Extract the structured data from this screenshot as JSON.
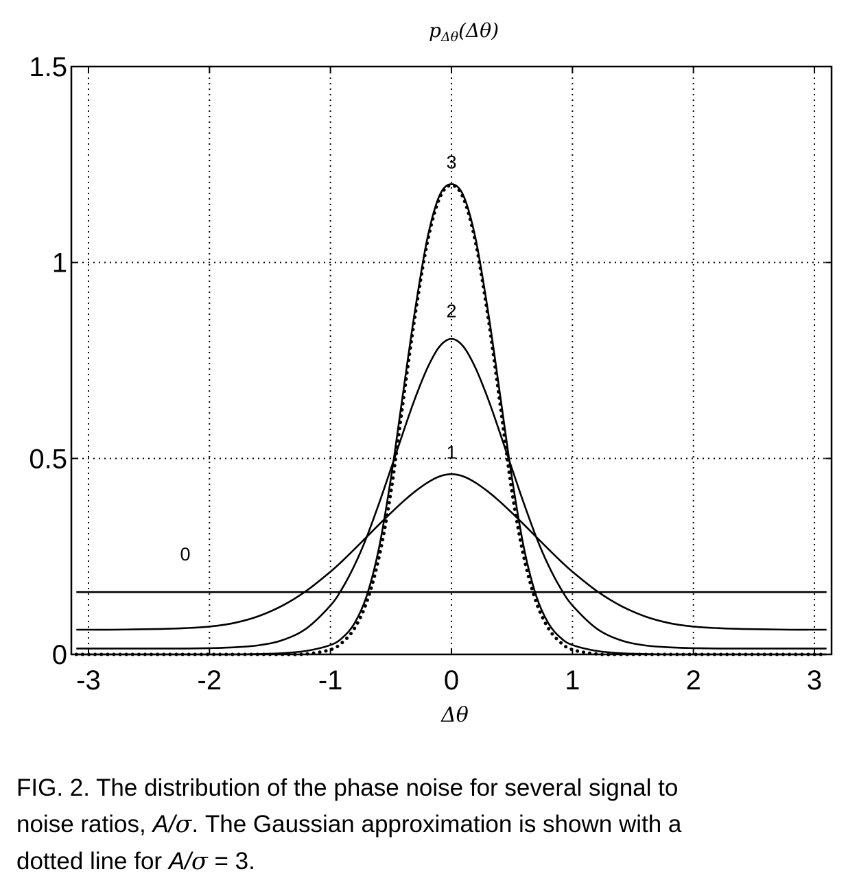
{
  "chart_data": {
    "type": "line",
    "title": "p_{Δθ}(Δθ)",
    "xlabel": "Δθ",
    "ylabel": "",
    "xlim": [
      -3.14159,
      3.14159
    ],
    "ylim": [
      0,
      1.5
    ],
    "x_ticks": [
      -3,
      -2,
      -1,
      0,
      1,
      2,
      3
    ],
    "x_tick_labels": [
      "-3",
      "-2",
      "-1",
      "0",
      "1",
      "2",
      "3"
    ],
    "y_ticks": [
      0,
      0.5,
      1,
      1.5
    ],
    "y_tick_labels": [
      "0",
      "0.5",
      "1",
      "1.5"
    ],
    "grid": true,
    "x": [
      -3.1,
      -3.0,
      -2.8,
      -2.6,
      -2.4,
      -2.2,
      -2.0,
      -1.8,
      -1.6,
      -1.4,
      -1.2,
      -1.0,
      -0.9,
      -0.8,
      -0.7,
      -0.6,
      -0.5,
      -0.4,
      -0.3,
      -0.2,
      -0.1,
      0.0,
      0.1,
      0.2,
      0.3,
      0.4,
      0.5,
      0.6,
      0.7,
      0.8,
      0.9,
      1.0,
      1.2,
      1.4,
      1.6,
      1.8,
      2.0,
      2.2,
      2.4,
      2.6,
      2.8,
      3.0,
      3.1
    ],
    "series": [
      {
        "name": "0",
        "style": "solid",
        "values": [
          0.159,
          0.159,
          0.159,
          0.159,
          0.159,
          0.159,
          0.159,
          0.159,
          0.159,
          0.159,
          0.159,
          0.159,
          0.159,
          0.159,
          0.159,
          0.159,
          0.159,
          0.159,
          0.159,
          0.159,
          0.159,
          0.159,
          0.159,
          0.159,
          0.159,
          0.159,
          0.159,
          0.159,
          0.159,
          0.159,
          0.159,
          0.159,
          0.159,
          0.159,
          0.159,
          0.159,
          0.159,
          0.159,
          0.159,
          0.159,
          0.159,
          0.159,
          0.159
        ]
      },
      {
        "name": "1",
        "style": "solid",
        "values": [
          0.063,
          0.063,
          0.063,
          0.064,
          0.065,
          0.067,
          0.071,
          0.08,
          0.097,
          0.124,
          0.162,
          0.211,
          0.239,
          0.269,
          0.3,
          0.331,
          0.361,
          0.39,
          0.416,
          0.438,
          0.454,
          0.46,
          0.454,
          0.438,
          0.416,
          0.39,
          0.361,
          0.331,
          0.3,
          0.269,
          0.239,
          0.211,
          0.162,
          0.124,
          0.097,
          0.08,
          0.071,
          0.067,
          0.065,
          0.064,
          0.063,
          0.063,
          0.063
        ]
      },
      {
        "name": "2",
        "style": "solid",
        "values": [
          0.015,
          0.015,
          0.015,
          0.015,
          0.015,
          0.015,
          0.016,
          0.018,
          0.023,
          0.036,
          0.066,
          0.125,
          0.17,
          0.228,
          0.3,
          0.384,
          0.474,
          0.566,
          0.654,
          0.73,
          0.785,
          0.805,
          0.785,
          0.73,
          0.654,
          0.566,
          0.474,
          0.384,
          0.3,
          0.228,
          0.17,
          0.125,
          0.066,
          0.036,
          0.023,
          0.018,
          0.016,
          0.015,
          0.015,
          0.015,
          0.015,
          0.015,
          0.015
        ]
      },
      {
        "name": "3",
        "style": "solid",
        "values": [
          0.0,
          0.0,
          0.0,
          0.0,
          0.0,
          0.0,
          0.0,
          0.0,
          0.001,
          0.003,
          0.009,
          0.024,
          0.043,
          0.08,
          0.15,
          0.27,
          0.45,
          0.667,
          0.88,
          1.06,
          1.17,
          1.2,
          1.17,
          1.06,
          0.88,
          0.667,
          0.45,
          0.27,
          0.15,
          0.08,
          0.043,
          0.024,
          0.009,
          0.003,
          0.001,
          0.0,
          0.0,
          0.0,
          0.0,
          0.0,
          0.0,
          0.0,
          0.0
        ]
      },
      {
        "name": "Gaussian approximation",
        "style": "dotted",
        "values": [
          0.0,
          0.0,
          0.0,
          0.0,
          0.0,
          0.0,
          0.0,
          0.0,
          0.0,
          0.0,
          0.001,
          0.012,
          0.031,
          0.067,
          0.134,
          0.246,
          0.415,
          0.644,
          0.866,
          1.05,
          1.163,
          1.197,
          1.163,
          1.05,
          0.866,
          0.644,
          0.415,
          0.246,
          0.134,
          0.067,
          0.031,
          0.012,
          0.001,
          0.0,
          0.0,
          0.0,
          0.0,
          0.0,
          0.0,
          0.0,
          0.0,
          0.0,
          0.0
        ]
      }
    ],
    "curve_labels": [
      {
        "text": "0",
        "x": -2.2,
        "y": 0.24
      },
      {
        "text": "1",
        "x": 0.0,
        "y": 0.5
      },
      {
        "text": "2",
        "x": 0.0,
        "y": 0.86
      },
      {
        "text": "3",
        "x": 0.0,
        "y": 1.24
      }
    ]
  },
  "caption": {
    "line1": "FIG. 2. The distribution of the phase noise for several signal to",
    "line2_pre": "noise ratios, ",
    "line2_A": "A/",
    "line2_sigma": "σ",
    "line2_post": ". The Gaussian approximation is shown with a",
    "line3_pre": "dotted line for ",
    "line3_A": "A/",
    "line3_sigma": "σ",
    "line3_post": " = 3."
  }
}
